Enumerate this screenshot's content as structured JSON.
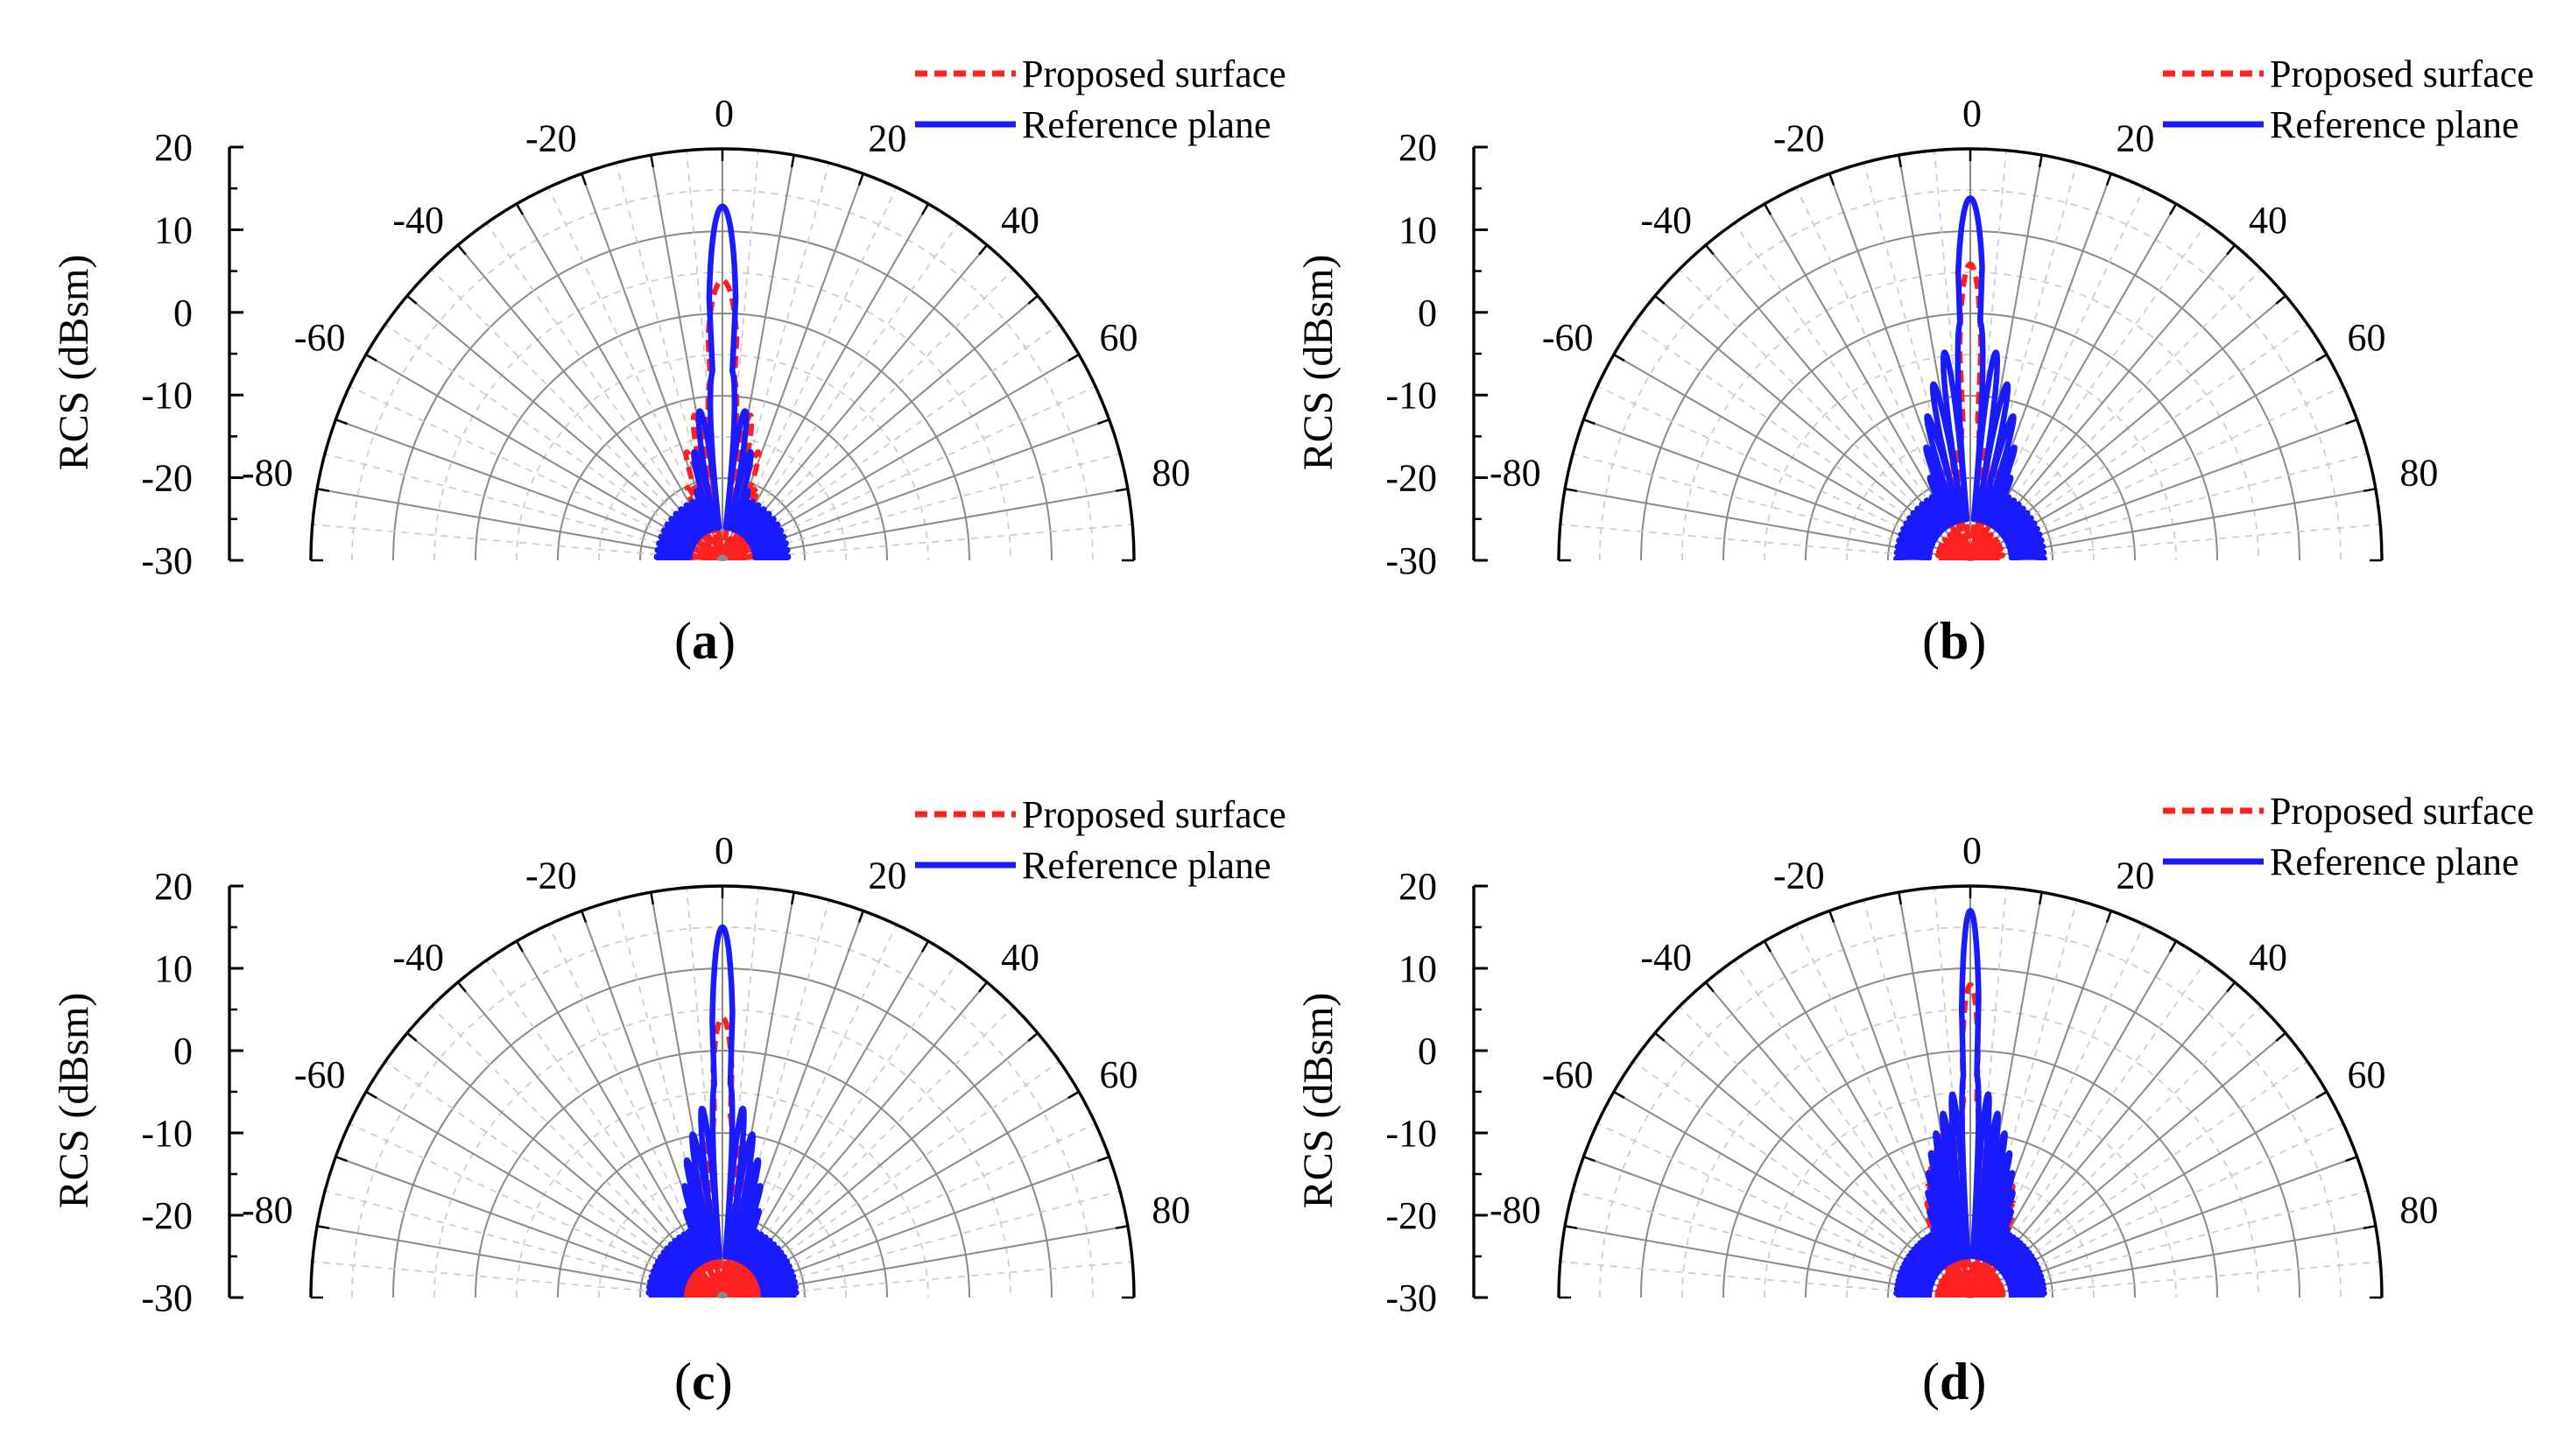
{
  "figure": {
    "panels": [
      "(a)",
      "(b)",
      "(c)",
      "(d)"
    ]
  },
  "chart_data": [
    {
      "id": "a",
      "type": "line",
      "subtype": "polar-half",
      "panel_label": "(a)",
      "ylabel": "RCS (dBsm)",
      "r_ticks": [
        "20",
        "10",
        "0",
        "-10",
        "-20",
        "-30"
      ],
      "r_range": [
        -30,
        20
      ],
      "angle_ticks": [
        "-80",
        "-60",
        "-40",
        "-20",
        "0",
        "20",
        "40",
        "60",
        "80"
      ],
      "angle_range": [
        -90,
        90
      ],
      "legend": [
        "Proposed surface",
        "Reference plane"
      ],
      "legend_position": "top-right",
      "series": [
        {
          "name": "Proposed surface",
          "color": "#ff2020",
          "style": "dashed",
          "main_peak": 4,
          "lobe_spacing_deg": 7.5,
          "sidelobe_start": -8,
          "sidelobe_decay": 0.55,
          "floor": -25
        },
        {
          "name": "Reference plane",
          "color": "#1a1aff",
          "style": "solid",
          "main_peak": 13,
          "lobe_spacing_deg": 6,
          "sidelobe_start": -7,
          "sidelobe_decay": 0.8,
          "floor": -22
        }
      ]
    },
    {
      "id": "b",
      "type": "line",
      "subtype": "polar-half",
      "panel_label": "(b)",
      "ylabel": "RCS (dBsm)",
      "r_ticks": [
        "20",
        "10",
        "0",
        "-10",
        "-20",
        "-30"
      ],
      "r_range": [
        -30,
        20
      ],
      "angle_ticks": [
        "-80",
        "-60",
        "-40",
        "-20",
        "0",
        "20",
        "40",
        "60",
        "80"
      ],
      "angle_range": [
        -90,
        90
      ],
      "legend": [
        "Proposed surface",
        "Reference plane"
      ],
      "legend_position": "top-right",
      "series": [
        {
          "name": "Proposed surface",
          "color": "#ff2020",
          "style": "dashed",
          "main_peak": 6,
          "lobe_spacing_deg": 6,
          "sidelobe_start": -13,
          "sidelobe_decay": 0.45,
          "floor": -26
        },
        {
          "name": "Reference plane",
          "color": "#1a1aff",
          "style": "solid",
          "main_peak": 14,
          "lobe_spacing_deg": 4.8,
          "sidelobe_start": -1,
          "sidelobe_decay": 0.75,
          "floor": -21
        }
      ]
    },
    {
      "id": "c",
      "type": "line",
      "subtype": "polar-half",
      "panel_label": "(c)",
      "ylabel": "RCS (dBsm)",
      "r_ticks": [
        "20",
        "10",
        "0",
        "-10",
        "-20",
        "-30"
      ],
      "r_range": [
        -30,
        20
      ],
      "angle_ticks": [
        "-80",
        "-60",
        "-40",
        "-20",
        "0",
        "20",
        "40",
        "60",
        "80"
      ],
      "angle_range": [
        -90,
        90
      ],
      "legend": [
        "Proposed surface",
        "Reference plane"
      ],
      "legend_position": "top-right",
      "series": [
        {
          "name": "Proposed surface",
          "color": "#ff2020",
          "style": "dashed",
          "main_peak": 4,
          "lobe_spacing_deg": 5,
          "sidelobe_start": -8,
          "sidelobe_decay": 0.55,
          "floor": -25
        },
        {
          "name": "Reference plane",
          "color": "#1a1aff",
          "style": "solid",
          "main_peak": 15,
          "lobe_spacing_deg": 4.2,
          "sidelobe_start": -4,
          "sidelobe_decay": 0.7,
          "floor": -21
        }
      ]
    },
    {
      "id": "d",
      "type": "line",
      "subtype": "polar-half",
      "panel_label": "(d)",
      "ylabel": "RCS (dBsm)",
      "r_ticks": [
        "20",
        "10",
        "0",
        "-10",
        "-20",
        "-30"
      ],
      "r_range": [
        -30,
        20
      ],
      "angle_ticks": [
        "-80",
        "-60",
        "-40",
        "-20",
        "0",
        "20",
        "40",
        "60",
        "80"
      ],
      "angle_range": [
        -90,
        90
      ],
      "legend": [
        "Proposed surface",
        "Reference plane"
      ],
      "legend_position": "top-right",
      "series": [
        {
          "name": "Proposed surface",
          "color": "#ff2020",
          "style": "dashed",
          "main_peak": 8,
          "lobe_spacing_deg": 3.8,
          "sidelobe_start": -6,
          "sidelobe_decay": 0.5,
          "floor": -26
        },
        {
          "name": "Reference plane",
          "color": "#1a1aff",
          "style": "solid",
          "main_peak": 17,
          "lobe_spacing_deg": 3.4,
          "sidelobe_start": -3,
          "sidelobe_decay": 0.65,
          "floor": -21
        }
      ]
    }
  ]
}
